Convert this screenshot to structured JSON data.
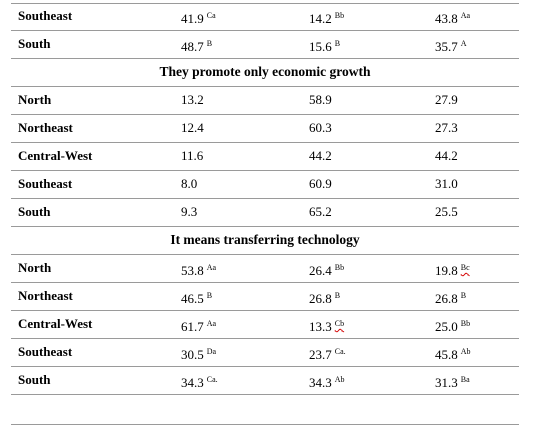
{
  "groups": [
    {
      "title": "",
      "rows": [
        {
          "region": "Southeast",
          "v1": "41.9",
          "s1": "Ca",
          "v2": "14.2",
          "s2": "Bb",
          "v3": "43.8",
          "s3": "Aa"
        },
        {
          "region": "South",
          "v1": "48.7",
          "s1": "B",
          "v2": "15.6",
          "s2": "B",
          "v3": "35.7",
          "s3": "A"
        }
      ]
    },
    {
      "title": "They promote only economic growth",
      "rows": [
        {
          "region": "North",
          "v1": "13.2",
          "s1": "",
          "v2": "58.9",
          "s2": "",
          "v3": "27.9",
          "s3": ""
        },
        {
          "region": "Northeast",
          "v1": "12.4",
          "s1": "",
          "v2": "60.3",
          "s2": "",
          "v3": "27.3",
          "s3": ""
        },
        {
          "region": "Central-West",
          "v1": "11.6",
          "s1": "",
          "v2": "44.2",
          "s2": "",
          "v3": "44.2",
          "s3": ""
        },
        {
          "region": "Southeast",
          "v1": "8.0",
          "s1": "",
          "v2": "60.9",
          "s2": "",
          "v3": "31.0",
          "s3": ""
        },
        {
          "region": "South",
          "v1": "9.3",
          "s1": "",
          "v2": "65.2",
          "s2": "",
          "v3": "25.5",
          "s3": ""
        }
      ]
    },
    {
      "title": "It means transferring technology",
      "rows": [
        {
          "region": "North",
          "v1": "53.8",
          "s1": "Aa",
          "v2": "26.4",
          "s2": "Bb",
          "v3": "19.8",
          "s3": "Bc"
        },
        {
          "region": "Northeast",
          "v1": "46.5",
          "s1": "B",
          "v2": "26.8",
          "s2": "B",
          "v3": "26.8",
          "s3": "B"
        },
        {
          "region": "Central-West",
          "v1": "61.7",
          "s1": "Aa",
          "v2": "13.3",
          "s2": "Cb",
          "v3": "25.0",
          "s3": "Bb"
        },
        {
          "region": "Southeast",
          "v1": "30.5",
          "s1": "Da",
          "v2": "23.7",
          "s2": "Ca.",
          "v3": "45.8",
          "s3": "Ab"
        },
        {
          "region": "South",
          "v1": "34.3",
          "s1": "Ca.",
          "v2": "34.3",
          "s2": "Ab",
          "v3": "31.3",
          "s3": "Ba"
        }
      ]
    }
  ]
}
